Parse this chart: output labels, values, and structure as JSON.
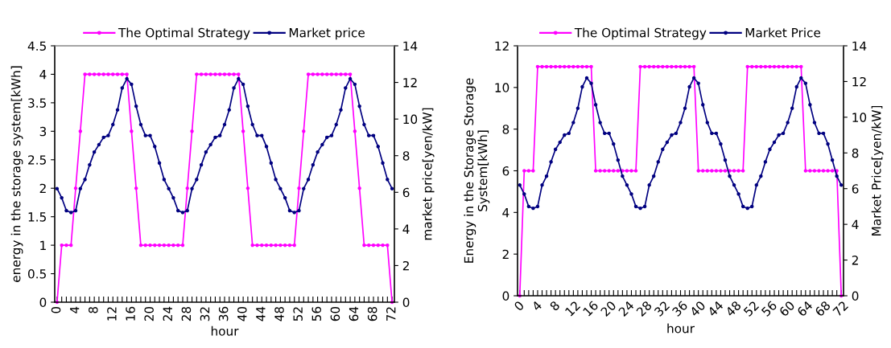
{
  "chart_data": [
    {
      "type": "line",
      "xlabel": "hour",
      "ylabel": "energy in the storage system[kWh]",
      "y2label": "market price[yen/kW]",
      "legend": "top",
      "grid": false,
      "marker": "circle",
      "line_style": "solid",
      "x": [
        0,
        1,
        2,
        3,
        4,
        5,
        6,
        7,
        8,
        9,
        10,
        11,
        12,
        13,
        14,
        15,
        16,
        17,
        18,
        19,
        20,
        21,
        22,
        23,
        24,
        25,
        26,
        27,
        28,
        29,
        30,
        31,
        32,
        33,
        34,
        35,
        36,
        37,
        38,
        39,
        40,
        41,
        42,
        43,
        44,
        45,
        46,
        47,
        48,
        49,
        50,
        51,
        52,
        53,
        54,
        55,
        56,
        57,
        58,
        59,
        60,
        61,
        62,
        63,
        64,
        65,
        66,
        67,
        68,
        69,
        70,
        71,
        72
      ],
      "xlim": [
        -0.5,
        72.5
      ],
      "xticks": [
        0,
        {
          "value": 1,
          "label": null
        },
        {
          "value": 2,
          "label": null
        },
        {
          "value": 3,
          "label": null
        },
        4,
        {
          "value": 5,
          "label": null
        },
        {
          "value": 6,
          "label": null
        },
        {
          "value": 7,
          "label": null
        },
        8,
        {
          "value": 9,
          "label": null
        },
        {
          "value": 10,
          "label": null
        },
        {
          "value": 11,
          "label": null
        },
        12,
        {
          "value": 13,
          "label": null
        },
        {
          "value": 14,
          "label": null
        },
        {
          "value": 15,
          "label": null
        },
        16,
        {
          "value": 17,
          "label": null
        },
        {
          "value": 18,
          "label": null
        },
        {
          "value": 19,
          "label": null
        },
        20,
        {
          "value": 21,
          "label": null
        },
        {
          "value": 22,
          "label": null
        },
        {
          "value": 23,
          "label": null
        },
        24,
        {
          "value": 25,
          "label": null
        },
        {
          "value": 26,
          "label": null
        },
        {
          "value": 27,
          "label": null
        },
        28,
        {
          "value": 29,
          "label": null
        },
        {
          "value": 30,
          "label": null
        },
        {
          "value": 31,
          "label": null
        },
        32,
        {
          "value": 33,
          "label": null
        },
        {
          "value": 34,
          "label": null
        },
        {
          "value": 35,
          "label": null
        },
        36,
        {
          "value": 37,
          "label": null
        },
        {
          "value": 38,
          "label": null
        },
        {
          "value": 39,
          "label": null
        },
        40,
        {
          "value": 41,
          "label": null
        },
        {
          "value": 42,
          "label": null
        },
        {
          "value": 43,
          "label": null
        },
        44,
        {
          "value": 45,
          "label": null
        },
        {
          "value": 46,
          "label": null
        },
        {
          "value": 47,
          "label": null
        },
        48,
        {
          "value": 49,
          "label": null
        },
        {
          "value": 50,
          "label": null
        },
        {
          "value": 51,
          "label": null
        },
        52,
        {
          "value": 53,
          "label": null
        },
        {
          "value": 54,
          "label": null
        },
        {
          "value": 55,
          "label": null
        },
        56,
        {
          "value": 57,
          "label": null
        },
        {
          "value": 58,
          "label": null
        },
        {
          "value": 59,
          "label": null
        },
        60,
        {
          "value": 61,
          "label": null
        },
        {
          "value": 62,
          "label": null
        },
        {
          "value": 63,
          "label": null
        },
        64,
        {
          "value": 65,
          "label": null
        },
        {
          "value": 66,
          "label": null
        },
        {
          "value": 67,
          "label": null
        },
        68,
        {
          "value": 69,
          "label": null
        },
        {
          "value": 70,
          "label": null
        },
        {
          "value": 71,
          "label": null
        },
        72
      ],
      "ylim": [
        0,
        4.5
      ],
      "yticks": [
        0,
        0.5,
        1,
        1.5,
        2,
        2.5,
        3,
        3.5,
        4,
        4.5
      ],
      "y2lim": [
        0,
        14
      ],
      "y2ticks": [
        0,
        2,
        4,
        6,
        8,
        10,
        12,
        14
      ],
      "series": [
        {
          "name": "The Optimal Strategy",
          "color": "#ff00ff",
          "axis": "y",
          "values": [
            0,
            1,
            1,
            1,
            2,
            3,
            4,
            4,
            4,
            4,
            4,
            4,
            4,
            4,
            4,
            4,
            3,
            2,
            1,
            1,
            1,
            1,
            1,
            1,
            1,
            1,
            1,
            1,
            2,
            3,
            4,
            4,
            4,
            4,
            4,
            4,
            4,
            4,
            4,
            4,
            3,
            2,
            1,
            1,
            1,
            1,
            1,
            1,
            1,
            1,
            1,
            1,
            2,
            3,
            4,
            4,
            4,
            4,
            4,
            4,
            4,
            4,
            4,
            4,
            3,
            2,
            1,
            1,
            1,
            1,
            1,
            1,
            0
          ]
        },
        {
          "name": "Market price",
          "color": "#000080",
          "axis": "y2",
          "values": [
            6.2,
            5.7,
            5.0,
            4.9,
            5.0,
            6.2,
            6.7,
            7.5,
            8.2,
            8.6,
            9.0,
            9.1,
            9.7,
            10.5,
            11.7,
            12.2,
            11.9,
            10.7,
            9.7,
            9.1,
            9.1,
            8.5,
            7.6,
            6.7,
            6.2,
            5.7,
            5.0,
            4.9,
            5.0,
            6.2,
            6.7,
            7.5,
            8.2,
            8.6,
            9.0,
            9.1,
            9.7,
            10.5,
            11.7,
            12.2,
            11.9,
            10.7,
            9.7,
            9.1,
            9.1,
            8.5,
            7.6,
            6.7,
            6.2,
            5.7,
            5.0,
            4.9,
            5.0,
            6.2,
            6.7,
            7.5,
            8.2,
            8.6,
            9.0,
            9.1,
            9.7,
            10.5,
            11.7,
            12.2,
            11.9,
            10.7,
            9.7,
            9.1,
            9.1,
            8.5,
            7.6,
            6.7,
            6.2
          ]
        }
      ]
    },
    {
      "type": "line",
      "xlabel": "hour",
      "ylabel": "Energy in the Storage Storage\nSystem[kWh]",
      "y2label": "Market Price[yen/kW]",
      "legend": "top",
      "grid": false,
      "marker": "circle",
      "line_style": "solid",
      "x": [
        0,
        1,
        2,
        3,
        4,
        5,
        6,
        7,
        8,
        9,
        10,
        11,
        12,
        13,
        14,
        15,
        16,
        17,
        18,
        19,
        20,
        21,
        22,
        23,
        24,
        25,
        26,
        27,
        28,
        29,
        30,
        31,
        32,
        33,
        34,
        35,
        36,
        37,
        38,
        39,
        40,
        41,
        42,
        43,
        44,
        45,
        46,
        47,
        48,
        49,
        50,
        51,
        52,
        53,
        54,
        55,
        56,
        57,
        58,
        59,
        60,
        61,
        62,
        63,
        64,
        65,
        66,
        67,
        68,
        69,
        70,
        71,
        72
      ],
      "xlim": [
        -0.5,
        72.5
      ],
      "xticks": [
        0,
        {
          "value": 1,
          "label": null
        },
        {
          "value": 2,
          "label": null
        },
        {
          "value": 3,
          "label": null
        },
        4,
        {
          "value": 5,
          "label": null
        },
        {
          "value": 6,
          "label": null
        },
        {
          "value": 7,
          "label": null
        },
        8,
        {
          "value": 9,
          "label": null
        },
        {
          "value": 10,
          "label": null
        },
        {
          "value": 11,
          "label": null
        },
        12,
        {
          "value": 13,
          "label": null
        },
        {
          "value": 14,
          "label": null
        },
        {
          "value": 15,
          "label": null
        },
        16,
        {
          "value": 17,
          "label": null
        },
        {
          "value": 18,
          "label": null
        },
        {
          "value": 19,
          "label": null
        },
        20,
        {
          "value": 21,
          "label": null
        },
        {
          "value": 22,
          "label": null
        },
        {
          "value": 23,
          "label": null
        },
        24,
        {
          "value": 25,
          "label": null
        },
        {
          "value": 26,
          "label": null
        },
        {
          "value": 27,
          "label": null
        },
        28,
        {
          "value": 29,
          "label": null
        },
        {
          "value": 30,
          "label": null
        },
        {
          "value": 31,
          "label": null
        },
        32,
        {
          "value": 33,
          "label": null
        },
        {
          "value": 34,
          "label": null
        },
        {
          "value": 35,
          "label": null
        },
        36,
        {
          "value": 37,
          "label": null
        },
        {
          "value": 38,
          "label": null
        },
        {
          "value": 39,
          "label": null
        },
        40,
        {
          "value": 41,
          "label": null
        },
        {
          "value": 42,
          "label": null
        },
        {
          "value": 43,
          "label": null
        },
        44,
        {
          "value": 45,
          "label": null
        },
        {
          "value": 46,
          "label": null
        },
        {
          "value": 47,
          "label": null
        },
        48,
        {
          "value": 49,
          "label": null
        },
        {
          "value": 50,
          "label": null
        },
        {
          "value": 51,
          "label": null
        },
        52,
        {
          "value": 53,
          "label": null
        },
        {
          "value": 54,
          "label": null
        },
        {
          "value": 55,
          "label": null
        },
        56,
        {
          "value": 57,
          "label": null
        },
        {
          "value": 58,
          "label": null
        },
        {
          "value": 59,
          "label": null
        },
        60,
        {
          "value": 61,
          "label": null
        },
        {
          "value": 62,
          "label": null
        },
        {
          "value": 63,
          "label": null
        },
        64,
        {
          "value": 65,
          "label": null
        },
        {
          "value": 66,
          "label": null
        },
        {
          "value": 67,
          "label": null
        },
        68,
        {
          "value": 69,
          "label": null
        },
        {
          "value": 70,
          "label": null
        },
        {
          "value": 71,
          "label": null
        },
        72
      ],
      "ylim": [
        0,
        12
      ],
      "yticks": [
        0,
        2,
        4,
        6,
        8,
        10,
        12
      ],
      "y2lim": [
        0,
        14
      ],
      "y2ticks": [
        0,
        2,
        4,
        6,
        8,
        10,
        12,
        14
      ],
      "series": [
        {
          "name": "The Optimal Strategy",
          "color": "#ff00ff",
          "axis": "y",
          "values": [
            0,
            6,
            6,
            6,
            11,
            11,
            11,
            11,
            11,
            11,
            11,
            11,
            11,
            11,
            11,
            11,
            11,
            6,
            6,
            6,
            6,
            6,
            6,
            6,
            6,
            6,
            6,
            11,
            11,
            11,
            11,
            11,
            11,
            11,
            11,
            11,
            11,
            11,
            11,
            11,
            6,
            6,
            6,
            6,
            6,
            6,
            6,
            6,
            6,
            6,
            6,
            11,
            11,
            11,
            11,
            11,
            11,
            11,
            11,
            11,
            11,
            11,
            11,
            11,
            6,
            6,
            6,
            6,
            6,
            6,
            6,
            6,
            0
          ]
        },
        {
          "name": "Market Price",
          "color": "#000080",
          "axis": "y2",
          "values": [
            6.2,
            5.7,
            5.0,
            4.9,
            5.0,
            6.2,
            6.7,
            7.5,
            8.2,
            8.6,
            9.0,
            9.1,
            9.7,
            10.5,
            11.7,
            12.2,
            11.9,
            10.7,
            9.7,
            9.1,
            9.1,
            8.5,
            7.6,
            6.7,
            6.2,
            5.7,
            5.0,
            4.9,
            5.0,
            6.2,
            6.7,
            7.5,
            8.2,
            8.6,
            9.0,
            9.1,
            9.7,
            10.5,
            11.7,
            12.2,
            11.9,
            10.7,
            9.7,
            9.1,
            9.1,
            8.5,
            7.6,
            6.7,
            6.2,
            5.7,
            5.0,
            4.9,
            5.0,
            6.2,
            6.7,
            7.5,
            8.2,
            8.6,
            9.0,
            9.1,
            9.7,
            10.5,
            11.7,
            12.2,
            11.9,
            10.7,
            9.7,
            9.1,
            9.1,
            8.5,
            7.6,
            6.7,
            6.2
          ]
        }
      ]
    }
  ]
}
